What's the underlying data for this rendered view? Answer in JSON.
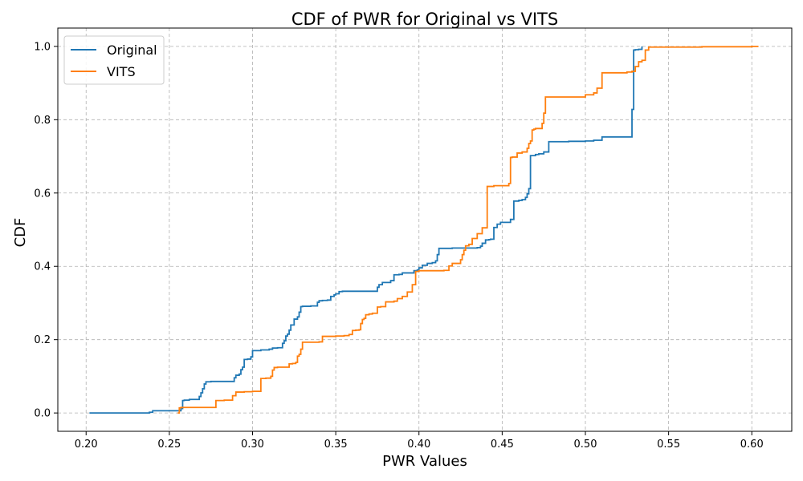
{
  "chart_data": {
    "type": "line",
    "title": "CDF of PWR for Original vs VITS",
    "xlabel": "PWR Values",
    "ylabel": "CDF",
    "xlim": [
      0.183,
      0.624
    ],
    "ylim": [
      -0.05,
      1.05
    ],
    "xticks": [
      "0.20",
      "0.25",
      "0.30",
      "0.35",
      "0.40",
      "0.45",
      "0.50",
      "0.55",
      "0.60"
    ],
    "yticks": [
      "0.0",
      "0.2",
      "0.4",
      "0.6",
      "0.8",
      "1.0"
    ],
    "grid": true,
    "legend_position": "top-left",
    "step": true,
    "series": [
      {
        "name": "Original",
        "color": "#1f77b4",
        "x": [
          0.202,
          0.238,
          0.24,
          0.256,
          0.257,
          0.258,
          0.259,
          0.262,
          0.265,
          0.268,
          0.269,
          0.27,
          0.271,
          0.272,
          0.275,
          0.28,
          0.285,
          0.289,
          0.29,
          0.292,
          0.293,
          0.294,
          0.295,
          0.297,
          0.299,
          0.3,
          0.305,
          0.31,
          0.312,
          0.315,
          0.318,
          0.319,
          0.32,
          0.321,
          0.322,
          0.323,
          0.325,
          0.327,
          0.328,
          0.329,
          0.33,
          0.335,
          0.339,
          0.34,
          0.342,
          0.345,
          0.347,
          0.349,
          0.35,
          0.352,
          0.354,
          0.356,
          0.36,
          0.365,
          0.37,
          0.375,
          0.376,
          0.378,
          0.381,
          0.383,
          0.385,
          0.388,
          0.39,
          0.395,
          0.397,
          0.399,
          0.4,
          0.402,
          0.405,
          0.408,
          0.41,
          0.411,
          0.412,
          0.42,
          0.425,
          0.43,
          0.435,
          0.437,
          0.438,
          0.44,
          0.442,
          0.443,
          0.445,
          0.447,
          0.449,
          0.455,
          0.457,
          0.46,
          0.462,
          0.464,
          0.465,
          0.466,
          0.467,
          0.47,
          0.472,
          0.475,
          0.478,
          0.48,
          0.49,
          0.5,
          0.505,
          0.51,
          0.52,
          0.525,
          0.528,
          0.529,
          0.53,
          0.532,
          0.534
        ],
        "y": [
          0.0,
          0.002,
          0.006,
          0.006,
          0.012,
          0.034,
          0.035,
          0.037,
          0.037,
          0.045,
          0.055,
          0.066,
          0.079,
          0.085,
          0.086,
          0.086,
          0.086,
          0.096,
          0.103,
          0.106,
          0.118,
          0.125,
          0.146,
          0.147,
          0.153,
          0.17,
          0.172,
          0.174,
          0.177,
          0.178,
          0.19,
          0.197,
          0.21,
          0.215,
          0.226,
          0.24,
          0.256,
          0.262,
          0.275,
          0.29,
          0.291,
          0.292,
          0.302,
          0.306,
          0.307,
          0.308,
          0.318,
          0.322,
          0.325,
          0.331,
          0.332,
          0.332,
          0.332,
          0.332,
          0.332,
          0.343,
          0.35,
          0.356,
          0.356,
          0.361,
          0.377,
          0.378,
          0.382,
          0.382,
          0.388,
          0.39,
          0.396,
          0.403,
          0.408,
          0.41,
          0.415,
          0.432,
          0.449,
          0.45,
          0.45,
          0.45,
          0.451,
          0.455,
          0.463,
          0.472,
          0.473,
          0.474,
          0.506,
          0.515,
          0.52,
          0.528,
          0.578,
          0.58,
          0.582,
          0.588,
          0.598,
          0.612,
          0.702,
          0.705,
          0.707,
          0.712,
          0.74,
          0.74,
          0.741,
          0.742,
          0.744,
          0.753,
          0.753,
          0.753,
          0.828,
          0.99,
          0.991,
          0.992,
          1.0
        ]
      },
      {
        "name": "VITS",
        "color": "#ff7f0e",
        "x": [
          0.255,
          0.256,
          0.257,
          0.26,
          0.27,
          0.278,
          0.283,
          0.288,
          0.29,
          0.295,
          0.3,
          0.305,
          0.308,
          0.311,
          0.312,
          0.313,
          0.315,
          0.32,
          0.322,
          0.324,
          0.326,
          0.327,
          0.328,
          0.329,
          0.33,
          0.335,
          0.34,
          0.342,
          0.35,
          0.355,
          0.358,
          0.36,
          0.362,
          0.364,
          0.365,
          0.366,
          0.367,
          0.368,
          0.37,
          0.372,
          0.375,
          0.377,
          0.38,
          0.385,
          0.387,
          0.39,
          0.393,
          0.396,
          0.398,
          0.4,
          0.405,
          0.41,
          0.415,
          0.418,
          0.42,
          0.425,
          0.426,
          0.427,
          0.428,
          0.43,
          0.432,
          0.435,
          0.438,
          0.44,
          0.441,
          0.442,
          0.445,
          0.45,
          0.454,
          0.455,
          0.456,
          0.459,
          0.462,
          0.465,
          0.466,
          0.467,
          0.468,
          0.469,
          0.47,
          0.472,
          0.474,
          0.475,
          0.476,
          0.478,
          0.48,
          0.49,
          0.5,
          0.505,
          0.507,
          0.51,
          0.52,
          0.525,
          0.528,
          0.53,
          0.532,
          0.534,
          0.536,
          0.538,
          0.54,
          0.55,
          0.57,
          0.59,
          0.6,
          0.604
        ],
        "y": [
          0.0,
          0.014,
          0.015,
          0.015,
          0.015,
          0.034,
          0.035,
          0.047,
          0.057,
          0.058,
          0.059,
          0.094,
          0.095,
          0.1,
          0.117,
          0.124,
          0.125,
          0.125,
          0.134,
          0.135,
          0.138,
          0.155,
          0.16,
          0.174,
          0.193,
          0.193,
          0.194,
          0.209,
          0.21,
          0.211,
          0.214,
          0.225,
          0.226,
          0.227,
          0.244,
          0.255,
          0.258,
          0.268,
          0.27,
          0.272,
          0.289,
          0.29,
          0.303,
          0.305,
          0.312,
          0.318,
          0.33,
          0.35,
          0.386,
          0.388,
          0.388,
          0.388,
          0.389,
          0.401,
          0.408,
          0.418,
          0.432,
          0.444,
          0.456,
          0.46,
          0.476,
          0.489,
          0.505,
          0.505,
          0.618,
          0.618,
          0.62,
          0.62,
          0.626,
          0.697,
          0.698,
          0.709,
          0.712,
          0.722,
          0.735,
          0.742,
          0.772,
          0.774,
          0.776,
          0.776,
          0.79,
          0.818,
          0.862,
          0.862,
          0.862,
          0.862,
          0.868,
          0.873,
          0.886,
          0.928,
          0.928,
          0.93,
          0.932,
          0.945,
          0.958,
          0.962,
          0.99,
          0.998,
          0.998,
          0.998,
          0.999,
          0.999,
          1.0,
          1.0
        ]
      }
    ]
  }
}
